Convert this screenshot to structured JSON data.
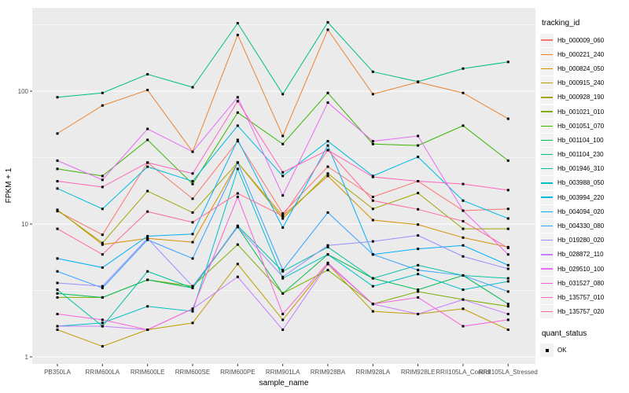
{
  "figure": {
    "background": "#FFFFFF",
    "panel_background": "#EBEBEB",
    "grid_color": "#FFFFFF",
    "tick_label_color": "#4D4D4D",
    "tick_mark_color": "#333333",
    "axis_title_color": "#000000"
  },
  "chart_data": {
    "type": "line",
    "title": "",
    "xlabel": "sample_name",
    "ylabel": "FPKM + 1",
    "y_scale": "log10",
    "y_ticks": [
      1,
      10,
      100
    ],
    "y_minor_ticks": [
      3.162,
      31.62,
      316.2
    ],
    "ylim": [
      1,
      425
    ],
    "grid": true,
    "legend_position": "right",
    "point_shape": "filled-square",
    "point_color": "#000000",
    "categories": [
      "PB350LA",
      "RRIM600LA",
      "RRIM600LE",
      "RRIM600SE",
      "RRIM600PE",
      "RRIM901LA",
      "RRIM928BA",
      "RRIM928LA",
      "RRIM928LE",
      "RRII105LA_Control",
      "RRII105LA_Stressed"
    ],
    "series": [
      {
        "name": "Hb_000009_060",
        "color": "#F8766D",
        "values": [
          12.5,
          8.3,
          29,
          15.5,
          42,
          12,
          27,
          16,
          21,
          12.6,
          13
        ]
      },
      {
        "name": "Hb_000221_240",
        "color": "#EA8331",
        "values": [
          48,
          78,
          102,
          35,
          265,
          46,
          290,
          95,
          117,
          97,
          62
        ]
      },
      {
        "name": "Hb_000824_050",
        "color": "#D89000",
        "values": [
          12.8,
          7.0,
          7.8,
          7.3,
          29,
          11.5,
          23,
          10.7,
          9.9,
          7.9,
          6.7
        ]
      },
      {
        "name": "Hb_000915_240",
        "color": "#C09B00",
        "values": [
          1.6,
          1.2,
          1.6,
          1.8,
          5.0,
          1.9,
          5.0,
          2.2,
          2.1,
          2.3,
          1.6
        ]
      },
      {
        "name": "Hb_000928_190",
        "color": "#A3A500",
        "values": [
          12.7,
          7.2,
          17.7,
          12.2,
          29,
          11,
          24,
          13,
          17.1,
          9.2,
          9.2
        ]
      },
      {
        "name": "Hb_001021_010",
        "color": "#7CAE00",
        "values": [
          2.8,
          2.8,
          3.8,
          3.4,
          7.0,
          3.0,
          4.5,
          2.5,
          3.1,
          2.7,
          2.4
        ]
      },
      {
        "name": "Hb_001051_070",
        "color": "#39B600",
        "values": [
          26,
          23,
          43,
          20,
          69,
          40,
          97,
          40,
          39,
          55,
          30
        ]
      },
      {
        "name": "Hb_001104_100",
        "color": "#00BB4E",
        "values": [
          3.0,
          2.8,
          3.8,
          3.3,
          9.5,
          3.0,
          5.9,
          3.9,
          3.2,
          4.1,
          2.5
        ]
      },
      {
        "name": "Hb_001104_230",
        "color": "#00BF7D",
        "values": [
          90,
          97,
          134,
          107,
          325,
          95,
          330,
          140,
          118,
          148,
          166
        ]
      },
      {
        "name": "Hb_001946_310",
        "color": "#00C1A3",
        "values": [
          3.2,
          1.7,
          4.4,
          3.3,
          9.7,
          4.4,
          6.7,
          3.9,
          4.9,
          4.1,
          3.9
        ]
      },
      {
        "name": "Hb_003988_050",
        "color": "#00BFC4",
        "values": [
          1.7,
          1.8,
          2.4,
          2.2,
          26,
          3.9,
          5.9,
          3.4,
          4.2,
          3.2,
          3.7
        ]
      },
      {
        "name": "Hb_003994_220",
        "color": "#00BAE0",
        "values": [
          18.5,
          13,
          27,
          21,
          55,
          23,
          42,
          23,
          32,
          15,
          11
        ]
      },
      {
        "name": "Hb_004094_020",
        "color": "#00B0F6",
        "values": [
          5.5,
          4.7,
          8.1,
          8.4,
          43,
          9.4,
          39,
          5.9,
          6.5,
          6.9,
          4.9
        ]
      },
      {
        "name": "Hb_004330_080",
        "color": "#35A2FF",
        "values": [
          4.4,
          3.3,
          7.6,
          5.5,
          29,
          4.5,
          12.2,
          5.9,
          4.5,
          4.1,
          3.1
        ]
      },
      {
        "name": "Hb_019280_020",
        "color": "#9590FF",
        "values": [
          3.6,
          3.4,
          7.8,
          3.4,
          9.5,
          4.0,
          6.9,
          7.4,
          8.2,
          5.7,
          4.6
        ]
      },
      {
        "name": "Hb_028872_110",
        "color": "#C77CFF",
        "values": [
          1.7,
          1.7,
          1.6,
          2.3,
          4.0,
          1.6,
          5.0,
          2.5,
          2.1,
          2.7,
          2.1
        ]
      },
      {
        "name": "Hb_029510_100",
        "color": "#E76BF3",
        "values": [
          30,
          21.5,
          52,
          35,
          90,
          16.4,
          82,
          42,
          46,
          12.6,
          5.9
        ]
      },
      {
        "name": "Hb_031527_080",
        "color": "#FA62DB",
        "values": [
          2.1,
          1.9,
          1.6,
          2.3,
          16,
          2.1,
          5.1,
          2.5,
          2.8,
          1.7,
          1.9
        ]
      },
      {
        "name": "Hb_135757_010",
        "color": "#FF62BC",
        "values": [
          21,
          19,
          29,
          24,
          84,
          24.5,
          36,
          22.6,
          21,
          20,
          18
        ]
      },
      {
        "name": "Hb_135757_020",
        "color": "#FF6A98",
        "values": [
          9.2,
          5.9,
          12.4,
          10.3,
          17,
          11.5,
          36,
          15,
          12.9,
          10.5,
          6.6
        ]
      }
    ]
  },
  "legend": {
    "tracking_title": "tracking_id",
    "quant_title": "quant_status",
    "quant_items": [
      {
        "label": "OK"
      }
    ]
  }
}
